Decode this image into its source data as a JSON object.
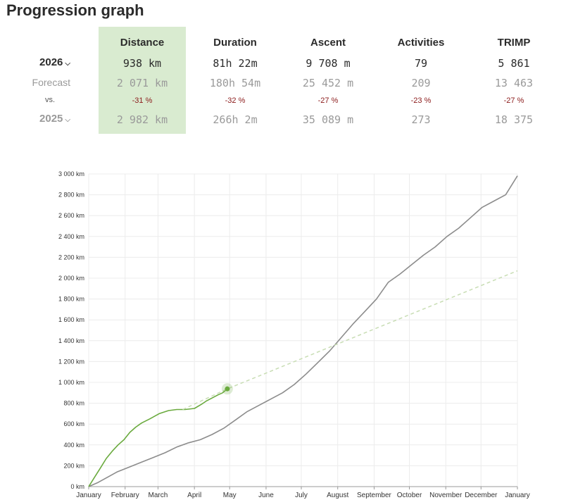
{
  "page": {
    "title": "Progression graph"
  },
  "stats": {
    "columns": [
      "Distance",
      "Duration",
      "Ascent",
      "Activities",
      "TRIMP"
    ],
    "current_year": "2026",
    "forecast_label": "Forecast",
    "vs_label": "vs.",
    "previous_year": "2025",
    "current": [
      "938 km",
      "81h 22m",
      "9 708 m",
      "79",
      "5 861"
    ],
    "forecast": [
      "2 071 km",
      "180h 54m",
      "25 452 m",
      "209",
      "13 463"
    ],
    "pct": [
      "-31 %",
      "-32 %",
      "-27 %",
      "-23 %",
      "-27 %"
    ],
    "previous": [
      "2 982 km",
      "266h 2m",
      "35 089 m",
      "273",
      "18 375"
    ],
    "highlight_color": "#d9ebd0"
  },
  "chart_data": {
    "type": "line",
    "x_unit": "day of year",
    "xlim": [
      0,
      365
    ],
    "ylim": [
      0,
      3000
    ],
    "y_ticks": [
      0,
      200,
      400,
      600,
      800,
      1000,
      1200,
      1400,
      1600,
      1800,
      2000,
      2200,
      2400,
      2600,
      2800,
      3000
    ],
    "y_tick_labels": [
      "0 km",
      "200 km",
      "400 km",
      "600 km",
      "800 km",
      "1 000 km",
      "1 200 km",
      "1 400 km",
      "1 600 km",
      "1 800 km",
      "2 000 km",
      "2 200 km",
      "2 400 km",
      "2 600 km",
      "2 800 km",
      "3 000 km"
    ],
    "x_ticks": [
      0,
      31,
      59,
      90,
      120,
      151,
      181,
      212,
      243,
      273,
      304,
      334,
      365
    ],
    "x_tick_labels": [
      "January",
      "February",
      "March",
      "April",
      "May",
      "June",
      "July",
      "August",
      "September",
      "October",
      "November",
      "December",
      "January"
    ],
    "grid": true,
    "series": [
      {
        "name": "2025",
        "color": "#8c8c8c",
        "style": "solid",
        "x": [
          0,
          8,
          16,
          24,
          34,
          45,
          55,
          65,
          75,
          85,
          95,
          105,
          115,
          125,
          135,
          145,
          155,
          165,
          175,
          185,
          195,
          205,
          215,
          225,
          235,
          245,
          255,
          265,
          275,
          285,
          295,
          305,
          315,
          325,
          335,
          345,
          355,
          365
        ],
        "y": [
          0,
          40,
          90,
          140,
          185,
          235,
          280,
          325,
          380,
          420,
          450,
          500,
          560,
          640,
          720,
          780,
          840,
          900,
          980,
          1080,
          1190,
          1300,
          1430,
          1560,
          1680,
          1800,
          1960,
          2040,
          2130,
          2220,
          2300,
          2400,
          2480,
          2580,
          2680,
          2740,
          2800,
          2982
        ]
      },
      {
        "name": "2026",
        "color": "#6aaa3e",
        "style": "solid",
        "x": [
          0,
          5,
          10,
          15,
          20,
          25,
          30,
          35,
          40,
          45,
          52,
          60,
          68,
          75,
          82,
          90,
          96,
          100,
          105,
          110,
          114,
          118
        ],
        "y": [
          0,
          90,
          180,
          270,
          340,
          400,
          450,
          520,
          570,
          610,
          650,
          700,
          730,
          740,
          740,
          750,
          790,
          820,
          850,
          880,
          900,
          938
        ]
      },
      {
        "name": "Forecast",
        "color": "#c8ddb4",
        "style": "dashed",
        "x": [
          80,
          118,
          365
        ],
        "y": [
          740,
          938,
          2071
        ]
      }
    ],
    "current_point": {
      "x": 118,
      "y": 938,
      "color": "#6aaa3e"
    }
  }
}
